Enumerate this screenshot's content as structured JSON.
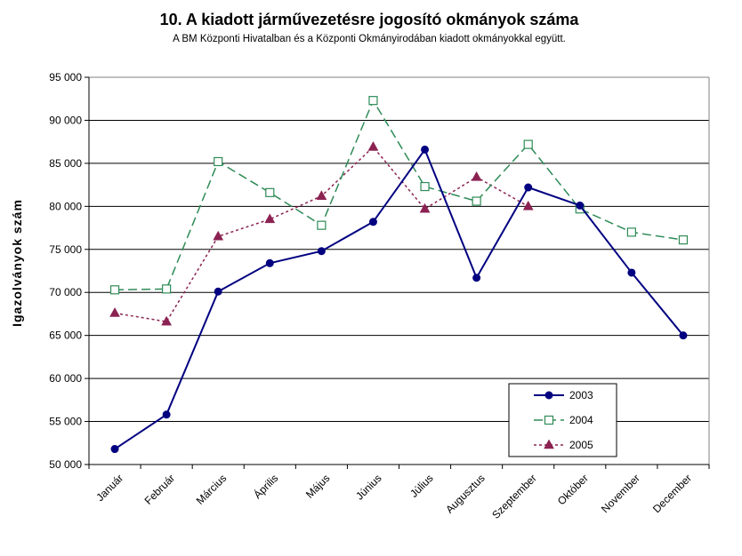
{
  "chart_data": {
    "type": "line",
    "title": "10. A  kiadott járművezetésre  jogosító okmányok száma",
    "subtitle": "A BM Központi Hivatalban és a Központi Okmányirodában kiadott okmányokkal együtt.",
    "ylabel": "Igazolványok szám",
    "xlabel": "",
    "ylim": [
      50000,
      95000
    ],
    "ytick_step": 5000,
    "ytick_labels": [
      "50 000",
      "55 000",
      "60 000",
      "65 000",
      "70 000",
      "75 000",
      "80 000",
      "85 000",
      "90 000",
      "95 000"
    ],
    "grid": true,
    "legend_position": "bottom-right",
    "categories": [
      "Január",
      "Február",
      "Március",
      "Április",
      "Május",
      "Június",
      "Július",
      "Augusztus",
      "Szeptember",
      "Október",
      "November",
      "December"
    ],
    "series": [
      {
        "name": "2003",
        "color": "#000080",
        "dash": "solid",
        "marker": "diamond",
        "values": [
          51800,
          55800,
          70100,
          73400,
          74800,
          78200,
          86600,
          71700,
          82200,
          80100,
          72300,
          65000
        ]
      },
      {
        "name": "2004",
        "color": "#2E8B57",
        "dash": "dashed",
        "marker": "square-open",
        "values": [
          70300,
          70400,
          85200,
          81600,
          77800,
          92300,
          82300,
          80600,
          87200,
          79700,
          77000,
          76100
        ]
      },
      {
        "name": "2005",
        "color": "#8B2252",
        "dash": "dotted",
        "marker": "triangle",
        "values": [
          67600,
          66600,
          76500,
          78500,
          81200,
          86900,
          79700,
          83400,
          80000,
          null,
          null,
          null
        ]
      }
    ]
  }
}
